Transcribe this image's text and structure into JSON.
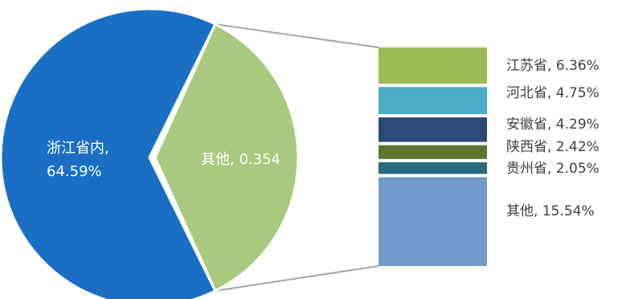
{
  "chart_data": {
    "type": "bar-of-pie",
    "pie": [
      {
        "label": "浙江省内",
        "value": 64.59,
        "label_text_line1": "浙江省内,",
        "label_text_line2": "64.59%",
        "color": "#1a6fc4"
      },
      {
        "label": "其他",
        "value": 35.41,
        "label_text": "其他, 0.354",
        "color": "#a9c97e"
      }
    ],
    "bar": [
      {
        "label": "江苏省",
        "value": 6.36,
        "label_text": "江苏省, 6.36%",
        "color": "#9bbb59"
      },
      {
        "label": "河北省",
        "value": 4.75,
        "label_text": "河北省, 4.75%",
        "color": "#4bacc6"
      },
      {
        "label": "安徽省",
        "value": 4.29,
        "label_text": "安徽省, 4.29%",
        "color": "#2c4a78"
      },
      {
        "label": "陕西省",
        "value": 2.42,
        "label_text": "陕西省, 2.42%",
        "color": "#5f7530"
      },
      {
        "label": "贵州省",
        "value": 2.05,
        "label_text": "贵州省, 2.05%",
        "color": "#276a7c"
      },
      {
        "label": "其他",
        "value": 15.54,
        "label_text": "其他, 15.54%",
        "color": "#729aca"
      }
    ],
    "connector_color": "#a6a6a6",
    "separator_color": "#ffffff"
  }
}
